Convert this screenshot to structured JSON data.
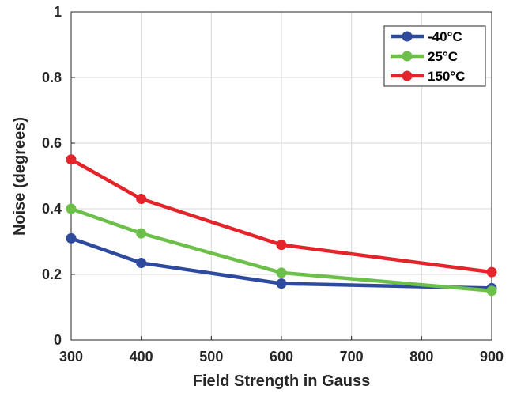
{
  "chart_data": {
    "type": "line",
    "title": "",
    "xlabel": "Field Strength in Gauss",
    "ylabel": "Noise (degrees)",
    "xlim": [
      300,
      900
    ],
    "ylim": [
      0,
      1
    ],
    "x_ticks": [
      "300",
      "400",
      "500",
      "600",
      "700",
      "800",
      "900"
    ],
    "y_ticks": [
      "0",
      "0.2",
      "0.4",
      "0.6",
      "0.8",
      "1"
    ],
    "grid": true,
    "legend_position": "top-right",
    "x": [
      300,
      400,
      600,
      900
    ],
    "series": [
      {
        "name": "-40°C",
        "color": "#2e4a9e",
        "values": [
          0.31,
          0.235,
          0.172,
          0.158
        ]
      },
      {
        "name": "25°C",
        "color": "#6cc04a",
        "values": [
          0.4,
          0.325,
          0.205,
          0.15
        ]
      },
      {
        "name": "150°C",
        "color": "#e3242b",
        "values": [
          0.55,
          0.43,
          0.29,
          0.207
        ]
      }
    ]
  }
}
